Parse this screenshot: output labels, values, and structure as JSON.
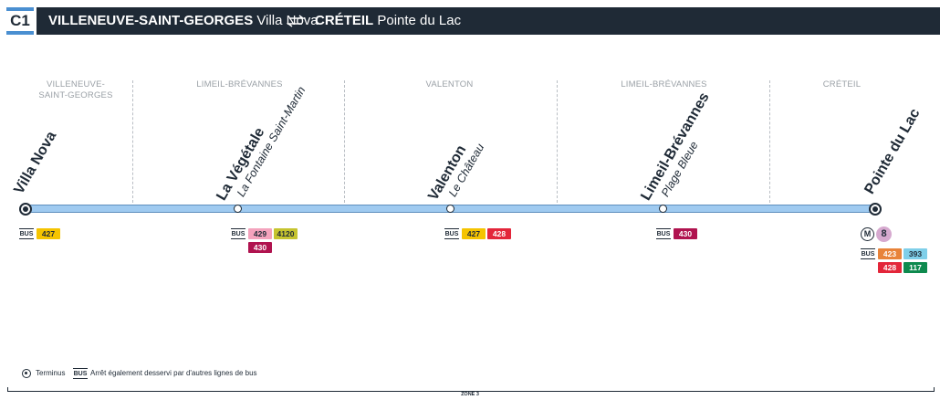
{
  "header": {
    "line": "C1",
    "from_city": "VILLENEUVE-SAINT-GEORGES",
    "from_stop": "Villa Nova",
    "to_city": "CRÉTEIL",
    "to_stop": "Pointe du Lac"
  },
  "zones": [
    {
      "line1": "VILLENEUVE-",
      "line2": "SAINT-GEORGES"
    },
    {
      "line1": "LIMEIL-BRÉVANNES",
      "line2": ""
    },
    {
      "line1": "VALENTON",
      "line2": ""
    },
    {
      "line1": "LIMEIL-BRÉVANNES",
      "line2": ""
    },
    {
      "line1": "CRÉTEIL",
      "line2": ""
    }
  ],
  "stops": [
    {
      "main": "Villa Nova",
      "sub": "",
      "terminus": true
    },
    {
      "main": "La Végétale",
      "sub": "La Fontaine Saint-Martin",
      "terminus": false
    },
    {
      "main": "Valenton",
      "sub": "Le Château",
      "terminus": false
    },
    {
      "main": "Limeil-Brévannes",
      "sub": "Plage Bleue",
      "terminus": false
    },
    {
      "main": "Pointe du Lac",
      "sub": "",
      "terminus": true
    }
  ],
  "bus_label": "BUS",
  "metro": {
    "symbol": "M",
    "line": "8",
    "line_color": "#d6a9cf"
  },
  "routes": {
    "r427a": {
      "num": "427",
      "bg": "#f5c400",
      "fg": "#1f2a36"
    },
    "r429": {
      "num": "429",
      "bg": "#f4a3bd",
      "fg": "#1f2a36"
    },
    "r4120": {
      "num": "4120",
      "bg": "#c6c42f",
      "fg": "#1f2a36"
    },
    "r430a": {
      "num": "430",
      "bg": "#b0134f",
      "fg": "#ffffff"
    },
    "r427b": {
      "num": "427",
      "bg": "#f5c400",
      "fg": "#1f2a36"
    },
    "r428a": {
      "num": "428",
      "bg": "#e3263a",
      "fg": "#ffffff"
    },
    "r430b": {
      "num": "430",
      "bg": "#b0134f",
      "fg": "#ffffff"
    },
    "r423": {
      "num": "423",
      "bg": "#e8833a",
      "fg": "#ffffff"
    },
    "r393": {
      "num": "393",
      "bg": "#7fcfe9",
      "fg": "#1f2a36"
    },
    "r428b": {
      "num": "428",
      "bg": "#e3263a",
      "fg": "#ffffff"
    },
    "r117": {
      "num": "117",
      "bg": "#0e8a4e",
      "fg": "#ffffff"
    }
  },
  "legend": {
    "terminus": "Terminus",
    "bus": "Arrêt également desservi par d'autres lignes de bus"
  },
  "fare_zone": "ZONE 3",
  "colors": {
    "line": "#9fcaf0",
    "dark": "#1f2a36",
    "accent": "#4a8fd1"
  }
}
